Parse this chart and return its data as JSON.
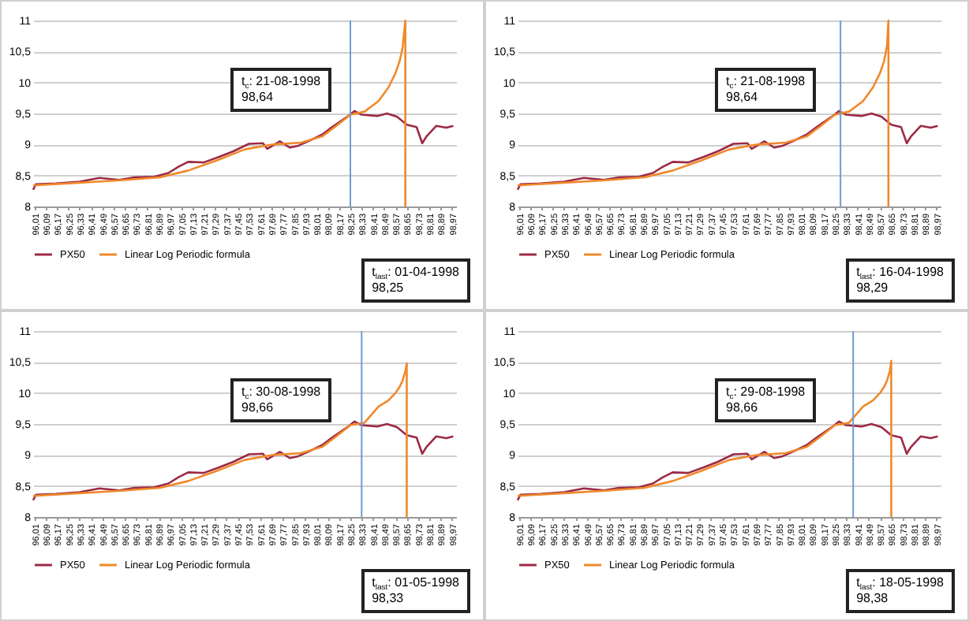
{
  "chart_data": [
    {
      "type": "line",
      "xlim": [
        96,
        99
      ],
      "ylim": [
        8,
        11
      ],
      "grid": "y",
      "legend": "bottom",
      "yticks": [
        8,
        {
          "value": 8.5,
          "label": "8,5"
        },
        9,
        {
          "value": 9.5,
          "label": "9,5"
        },
        10,
        {
          "value": 10.5,
          "label": "10,5"
        },
        11
      ],
      "xticks": [
        {
          "value": 96.01,
          "label": "96,01"
        },
        {
          "value": 96.09,
          "label": "96,09"
        },
        {
          "value": 96.17,
          "label": "96,17"
        },
        {
          "value": 96.25,
          "label": "96,25"
        },
        {
          "value": 96.33,
          "label": "96,33"
        },
        {
          "value": 96.41,
          "label": "96,41"
        },
        {
          "value": 96.49,
          "label": "96,49"
        },
        {
          "value": 96.57,
          "label": "96,57"
        },
        {
          "value": 96.65,
          "label": "96,65"
        },
        {
          "value": 96.73,
          "label": "96,73"
        },
        {
          "value": 96.81,
          "label": "96,81"
        },
        {
          "value": 96.89,
          "label": "96,89"
        },
        {
          "value": 96.97,
          "label": "96,97"
        },
        {
          "value": 97.05,
          "label": "97,05"
        },
        {
          "value": 97.13,
          "label": "97,13"
        },
        {
          "value": 97.21,
          "label": "97,21"
        },
        {
          "value": 97.29,
          "label": "97,29"
        },
        {
          "value": 97.37,
          "label": "97,37"
        },
        {
          "value": 97.45,
          "label": "97,45"
        },
        {
          "value": 97.53,
          "label": "97,53"
        },
        {
          "value": 97.61,
          "label": "97,61"
        },
        {
          "value": 97.69,
          "label": "97,69"
        },
        {
          "value": 97.77,
          "label": "97,77"
        },
        {
          "value": 97.85,
          "label": "97,85"
        },
        {
          "value": 97.93,
          "label": "97,93"
        },
        {
          "value": 98.01,
          "label": "98,01"
        },
        {
          "value": 98.09,
          "label": "98,09"
        },
        {
          "value": 98.17,
          "label": "98,17"
        },
        {
          "value": 98.25,
          "label": "98,25"
        },
        {
          "value": 98.33,
          "label": "98,33"
        },
        {
          "value": 98.41,
          "label": "98,41"
        },
        {
          "value": 98.49,
          "label": "98,49"
        },
        {
          "value": 98.57,
          "label": "98,57"
        },
        {
          "value": 98.65,
          "label": "98,65"
        },
        {
          "value": 98.73,
          "label": "98,73"
        },
        {
          "value": 98.81,
          "label": "98,81"
        },
        {
          "value": 98.89,
          "label": "98,89"
        },
        {
          "value": 98.97,
          "label": "98,97"
        }
      ],
      "series": [
        {
          "name": "PX50",
          "color": "#9c2a45",
          "x": [
            96.0,
            96.02,
            96.16,
            96.33,
            96.47,
            96.61,
            96.72,
            96.86,
            96.96,
            97.03,
            97.1,
            97.21,
            97.32,
            97.42,
            97.53,
            97.63,
            97.66,
            97.75,
            97.82,
            97.88,
            97.95,
            98.05,
            98.12,
            98.23,
            98.28,
            98.33,
            98.44,
            98.51,
            98.58,
            98.65,
            98.72,
            98.76,
            98.79,
            98.86,
            98.93,
            98.98
          ],
          "values": [
            8.27,
            8.36,
            8.37,
            8.4,
            8.46,
            8.43,
            8.47,
            8.48,
            8.54,
            8.64,
            8.72,
            8.71,
            8.8,
            8.89,
            9.01,
            9.02,
            8.93,
            9.05,
            8.95,
            8.98,
            9.05,
            9.16,
            9.28,
            9.45,
            9.54,
            9.48,
            9.46,
            9.5,
            9.45,
            9.32,
            9.28,
            9.02,
            9.13,
            9.3,
            9.27,
            9.3
          ]
        },
        {
          "name": "Linear Log Periodic formula",
          "color": "#f0892b",
          "x": [
            96.0,
            96.3,
            96.6,
            96.9,
            97.1,
            97.3,
            97.5,
            97.7,
            97.9,
            98.05,
            98.15,
            98.25,
            98.35,
            98.45,
            98.52,
            98.57,
            98.6,
            98.62,
            98.64,
            98.64
          ],
          "values": [
            8.34,
            8.38,
            8.42,
            8.47,
            8.58,
            8.74,
            8.92,
            9.0,
            9.03,
            9.13,
            9.3,
            9.48,
            9.53,
            9.7,
            9.92,
            10.15,
            10.35,
            10.55,
            11,
            8
          ]
        }
      ],
      "ref_lines": [
        {
          "axis": "x",
          "value": 98.25,
          "color": "#6f9bd1"
        }
      ],
      "annotations": [
        "t$_{c}$: 21-08-1998\n98,64",
        "t$_{last}$: 01-04-1998\n98,25"
      ]
    },
    {
      "type": "line",
      "xlim": [
        96,
        99
      ],
      "ylim": [
        8,
        11
      ],
      "grid": "y",
      "legend": "bottom",
      "yticks": [
        8,
        {
          "value": 8.5,
          "label": "8,5"
        },
        9,
        {
          "value": 9.5,
          "label": "9,5"
        },
        10,
        {
          "value": 10.5,
          "label": "10,5"
        },
        11
      ],
      "xticks": [
        {
          "value": 96.01,
          "label": "96,01"
        },
        {
          "value": 96.09,
          "label": "96,09"
        },
        {
          "value": 96.17,
          "label": "96,17"
        },
        {
          "value": 96.25,
          "label": "96,25"
        },
        {
          "value": 96.33,
          "label": "96,33"
        },
        {
          "value": 96.41,
          "label": "96,41"
        },
        {
          "value": 96.49,
          "label": "96,49"
        },
        {
          "value": 96.57,
          "label": "96,57"
        },
        {
          "value": 96.65,
          "label": "96,65"
        },
        {
          "value": 96.73,
          "label": "96,73"
        },
        {
          "value": 96.81,
          "label": "96,81"
        },
        {
          "value": 96.89,
          "label": "96,89"
        },
        {
          "value": 96.97,
          "label": "96,97"
        },
        {
          "value": 97.05,
          "label": "97,05"
        },
        {
          "value": 97.13,
          "label": "97,13"
        },
        {
          "value": 97.21,
          "label": "97,21"
        },
        {
          "value": 97.29,
          "label": "97,29"
        },
        {
          "value": 97.37,
          "label": "97,37"
        },
        {
          "value": 97.45,
          "label": "97,45"
        },
        {
          "value": 97.53,
          "label": "97,53"
        },
        {
          "value": 97.61,
          "label": "97,61"
        },
        {
          "value": 97.69,
          "label": "97,69"
        },
        {
          "value": 97.77,
          "label": "97,77"
        },
        {
          "value": 97.85,
          "label": "97,85"
        },
        {
          "value": 97.93,
          "label": "97,93"
        },
        {
          "value": 98.01,
          "label": "98,01"
        },
        {
          "value": 98.09,
          "label": "98,09"
        },
        {
          "value": 98.17,
          "label": "98,17"
        },
        {
          "value": 98.25,
          "label": "98,25"
        },
        {
          "value": 98.33,
          "label": "98,33"
        },
        {
          "value": 98.41,
          "label": "98,41"
        },
        {
          "value": 98.49,
          "label": "98,49"
        },
        {
          "value": 98.57,
          "label": "98,57"
        },
        {
          "value": 98.65,
          "label": "98,65"
        },
        {
          "value": 98.73,
          "label": "98,73"
        },
        {
          "value": 98.81,
          "label": "98,81"
        },
        {
          "value": 98.89,
          "label": "98,89"
        },
        {
          "value": 98.97,
          "label": "98,97"
        }
      ],
      "series": [
        {
          "name": "PX50",
          "color": "#9c2a45",
          "x": [
            96.0,
            96.02,
            96.16,
            96.33,
            96.47,
            96.61,
            96.72,
            96.86,
            96.96,
            97.03,
            97.1,
            97.21,
            97.32,
            97.42,
            97.53,
            97.63,
            97.66,
            97.75,
            97.82,
            97.88,
            97.95,
            98.05,
            98.12,
            98.23,
            98.28,
            98.33,
            98.44,
            98.51,
            98.58,
            98.65,
            98.72,
            98.76,
            98.79,
            98.86,
            98.93,
            98.98
          ],
          "values": [
            8.27,
            8.36,
            8.37,
            8.4,
            8.46,
            8.43,
            8.47,
            8.48,
            8.54,
            8.64,
            8.72,
            8.71,
            8.8,
            8.89,
            9.01,
            9.02,
            8.93,
            9.05,
            8.95,
            8.98,
            9.05,
            9.16,
            9.28,
            9.45,
            9.54,
            9.48,
            9.46,
            9.5,
            9.45,
            9.32,
            9.28,
            9.02,
            9.13,
            9.3,
            9.27,
            9.3
          ]
        },
        {
          "name": "Linear Log Periodic formula",
          "color": "#f0892b",
          "x": [
            96.0,
            96.3,
            96.6,
            96.9,
            97.1,
            97.3,
            97.5,
            97.7,
            97.9,
            98.05,
            98.15,
            98.25,
            98.35,
            98.45,
            98.52,
            98.57,
            98.6,
            98.62,
            98.63,
            98.63
          ],
          "values": [
            8.34,
            8.38,
            8.42,
            8.47,
            8.58,
            8.74,
            8.92,
            9.0,
            9.03,
            9.13,
            9.3,
            9.48,
            9.53,
            9.7,
            9.92,
            10.15,
            10.35,
            10.6,
            11,
            8
          ]
        }
      ],
      "ref_lines": [
        {
          "axis": "x",
          "value": 98.29,
          "color": "#6f9bd1"
        }
      ],
      "annotations": [
        "t$_{c}$: 21-08-1998\n98,64",
        "t$_{last}$: 16-04-1998\n98,29"
      ]
    },
    {
      "type": "line",
      "xlim": [
        96,
        99
      ],
      "ylim": [
        8,
        11
      ],
      "grid": "y",
      "legend": "bottom",
      "yticks": [
        8,
        {
          "value": 8.5,
          "label": "8,5"
        },
        9,
        {
          "value": 9.5,
          "label": "9,5"
        },
        10,
        {
          "value": 10.5,
          "label": "10,5"
        },
        11
      ],
      "xticks": [
        {
          "value": 96.01,
          "label": "96,01"
        },
        {
          "value": 96.09,
          "label": "96,09"
        },
        {
          "value": 96.17,
          "label": "96,17"
        },
        {
          "value": 96.25,
          "label": "96,25"
        },
        {
          "value": 96.33,
          "label": "96,33"
        },
        {
          "value": 96.41,
          "label": "96,41"
        },
        {
          "value": 96.49,
          "label": "96,49"
        },
        {
          "value": 96.57,
          "label": "96,57"
        },
        {
          "value": 96.65,
          "label": "96,65"
        },
        {
          "value": 96.73,
          "label": "96,73"
        },
        {
          "value": 96.81,
          "label": "96,81"
        },
        {
          "value": 96.89,
          "label": "96,89"
        },
        {
          "value": 96.97,
          "label": "96,97"
        },
        {
          "value": 97.05,
          "label": "97,05"
        },
        {
          "value": 97.13,
          "label": "97,13"
        },
        {
          "value": 97.21,
          "label": "97,21"
        },
        {
          "value": 97.29,
          "label": "97,29"
        },
        {
          "value": 97.37,
          "label": "97,37"
        },
        {
          "value": 97.45,
          "label": "97,45"
        },
        {
          "value": 97.53,
          "label": "97,53"
        },
        {
          "value": 97.61,
          "label": "97,61"
        },
        {
          "value": 97.69,
          "label": "97,69"
        },
        {
          "value": 97.77,
          "label": "97,77"
        },
        {
          "value": 97.85,
          "label": "97,85"
        },
        {
          "value": 97.93,
          "label": "97,93"
        },
        {
          "value": 98.01,
          "label": "98,01"
        },
        {
          "value": 98.09,
          "label": "98,09"
        },
        {
          "value": 98.17,
          "label": "98,17"
        },
        {
          "value": 98.25,
          "label": "98,25"
        },
        {
          "value": 98.33,
          "label": "98,33"
        },
        {
          "value": 98.41,
          "label": "98,41"
        },
        {
          "value": 98.49,
          "label": "98,49"
        },
        {
          "value": 98.57,
          "label": "98,57"
        },
        {
          "value": 98.65,
          "label": "98,65"
        },
        {
          "value": 98.73,
          "label": "98,73"
        },
        {
          "value": 98.81,
          "label": "98,81"
        },
        {
          "value": 98.89,
          "label": "98,89"
        },
        {
          "value": 98.97,
          "label": "98,97"
        }
      ],
      "series": [
        {
          "name": "PX50",
          "color": "#9c2a45",
          "x": [
            96.0,
            96.02,
            96.16,
            96.33,
            96.47,
            96.61,
            96.72,
            96.86,
            96.96,
            97.03,
            97.1,
            97.21,
            97.32,
            97.42,
            97.53,
            97.63,
            97.66,
            97.75,
            97.82,
            97.88,
            97.95,
            98.05,
            98.12,
            98.23,
            98.28,
            98.33,
            98.44,
            98.51,
            98.58,
            98.65,
            98.72,
            98.76,
            98.79,
            98.86,
            98.93,
            98.98
          ],
          "values": [
            8.27,
            8.36,
            8.37,
            8.4,
            8.46,
            8.43,
            8.47,
            8.48,
            8.54,
            8.64,
            8.72,
            8.71,
            8.8,
            8.89,
            9.01,
            9.02,
            8.93,
            9.05,
            8.95,
            8.98,
            9.05,
            9.16,
            9.28,
            9.45,
            9.54,
            9.48,
            9.46,
            9.5,
            9.45,
            9.32,
            9.28,
            9.02,
            9.13,
            9.3,
            9.27,
            9.3
          ]
        },
        {
          "name": "Linear Log Periodic formula",
          "color": "#f0892b",
          "x": [
            96.0,
            96.3,
            96.6,
            96.9,
            97.1,
            97.3,
            97.5,
            97.7,
            97.9,
            98.05,
            98.15,
            98.25,
            98.35,
            98.45,
            98.52,
            98.57,
            98.6,
            98.62,
            98.64,
            98.65,
            98.65
          ],
          "values": [
            8.34,
            8.38,
            8.42,
            8.47,
            8.58,
            8.74,
            8.92,
            9.0,
            9.03,
            9.13,
            9.3,
            9.48,
            9.52,
            9.78,
            9.88,
            10.0,
            10.1,
            10.2,
            10.35,
            10.48,
            8
          ]
        }
      ],
      "ref_lines": [
        {
          "axis": "x",
          "value": 98.33,
          "color": "#6f9bd1"
        }
      ],
      "annotations": [
        "t$_{c}$: 30-08-1998\n98,66",
        "t$_{last}$: 01-05-1998\n98,33"
      ]
    },
    {
      "type": "line",
      "xlim": [
        96,
        99
      ],
      "ylim": [
        8,
        11
      ],
      "grid": "y",
      "legend": "bottom",
      "yticks": [
        8,
        {
          "value": 8.5,
          "label": "8,5"
        },
        9,
        {
          "value": 9.5,
          "label": "9,5"
        },
        10,
        {
          "value": 10.5,
          "label": "10,5"
        },
        11
      ],
      "xticks": [
        {
          "value": 96.01,
          "label": "96,01"
        },
        {
          "value": 96.09,
          "label": "96,09"
        },
        {
          "value": 96.17,
          "label": "96,17"
        },
        {
          "value": 96.25,
          "label": "96,25"
        },
        {
          "value": 96.33,
          "label": "96,33"
        },
        {
          "value": 96.41,
          "label": "96,41"
        },
        {
          "value": 96.49,
          "label": "96,49"
        },
        {
          "value": 96.57,
          "label": "96,57"
        },
        {
          "value": 96.65,
          "label": "96,65"
        },
        {
          "value": 96.73,
          "label": "96,73"
        },
        {
          "value": 96.81,
          "label": "96,81"
        },
        {
          "value": 96.89,
          "label": "96,89"
        },
        {
          "value": 96.97,
          "label": "96,97"
        },
        {
          "value": 97.05,
          "label": "97,05"
        },
        {
          "value": 97.13,
          "label": "97,13"
        },
        {
          "value": 97.21,
          "label": "97,21"
        },
        {
          "value": 97.29,
          "label": "97,29"
        },
        {
          "value": 97.37,
          "label": "97,37"
        },
        {
          "value": 97.45,
          "label": "97,45"
        },
        {
          "value": 97.53,
          "label": "97,53"
        },
        {
          "value": 97.61,
          "label": "97,61"
        },
        {
          "value": 97.69,
          "label": "97,69"
        },
        {
          "value": 97.77,
          "label": "97,77"
        },
        {
          "value": 97.85,
          "label": "97,85"
        },
        {
          "value": 97.93,
          "label": "97,93"
        },
        {
          "value": 98.01,
          "label": "98,01"
        },
        {
          "value": 98.09,
          "label": "98,09"
        },
        {
          "value": 98.17,
          "label": "98,17"
        },
        {
          "value": 98.25,
          "label": "98,25"
        },
        {
          "value": 98.33,
          "label": "98,33"
        },
        {
          "value": 98.41,
          "label": "98,41"
        },
        {
          "value": 98.49,
          "label": "98,49"
        },
        {
          "value": 98.57,
          "label": "98,57"
        },
        {
          "value": 98.65,
          "label": "98,65"
        },
        {
          "value": 98.73,
          "label": "98,73"
        },
        {
          "value": 98.81,
          "label": "98,81"
        },
        {
          "value": 98.89,
          "label": "98,89"
        },
        {
          "value": 98.97,
          "label": "98,97"
        }
      ],
      "series": [
        {
          "name": "PX50",
          "color": "#9c2a45",
          "x": [
            96.0,
            96.02,
            96.16,
            96.33,
            96.47,
            96.61,
            96.72,
            96.86,
            96.96,
            97.03,
            97.1,
            97.21,
            97.32,
            97.42,
            97.53,
            97.63,
            97.66,
            97.75,
            97.82,
            97.88,
            97.95,
            98.05,
            98.12,
            98.23,
            98.28,
            98.33,
            98.44,
            98.51,
            98.58,
            98.65,
            98.72,
            98.76,
            98.79,
            98.86,
            98.93,
            98.98
          ],
          "values": [
            8.27,
            8.36,
            8.37,
            8.4,
            8.46,
            8.43,
            8.47,
            8.48,
            8.54,
            8.64,
            8.72,
            8.71,
            8.8,
            8.89,
            9.01,
            9.02,
            8.93,
            9.05,
            8.95,
            8.98,
            9.05,
            9.16,
            9.28,
            9.45,
            9.54,
            9.48,
            9.46,
            9.5,
            9.45,
            9.32,
            9.28,
            9.02,
            9.13,
            9.3,
            9.27,
            9.3
          ]
        },
        {
          "name": "Linear Log Periodic formula",
          "color": "#f0892b",
          "x": [
            96.0,
            96.3,
            96.6,
            96.9,
            97.1,
            97.3,
            97.5,
            97.7,
            97.9,
            98.05,
            98.15,
            98.25,
            98.35,
            98.45,
            98.52,
            98.57,
            98.6,
            98.62,
            98.64,
            98.65,
            98.65
          ],
          "values": [
            8.34,
            8.38,
            8.42,
            8.47,
            8.58,
            8.74,
            8.92,
            9.0,
            9.03,
            9.13,
            9.3,
            9.48,
            9.52,
            9.78,
            9.88,
            10.0,
            10.1,
            10.2,
            10.35,
            10.52,
            8
          ]
        }
      ],
      "ref_lines": [
        {
          "axis": "x",
          "value": 98.38,
          "color": "#6f9bd1"
        }
      ],
      "annotations": [
        "t$_{c}$: 29-08-1998\n98,66",
        "t$_{last}$: 18-05-1998\n98,38"
      ]
    }
  ]
}
